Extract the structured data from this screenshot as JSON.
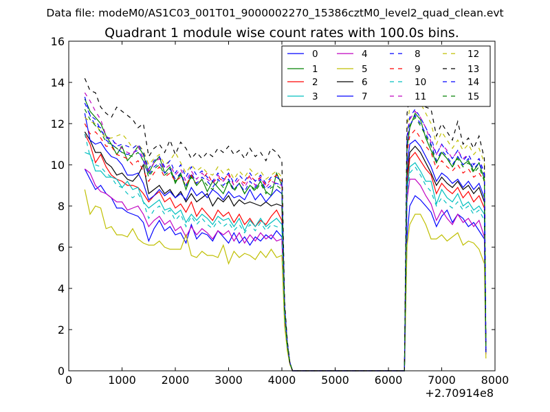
{
  "suptitle": "Data file: modeM0/AS1C03_001T01_9000002270_15386cztM0_level2_quad_clean.evt",
  "chart_data": {
    "type": "line",
    "title": "Quadrant 1 module wise count rates with 100.0s bins.",
    "xlabel": "",
    "ylabel": "",
    "xlim": [
      0,
      8000
    ],
    "ylim": [
      0,
      16
    ],
    "x_offset_label": "+2.70914e8",
    "xticks": [
      0,
      1000,
      2000,
      3000,
      4000,
      5000,
      6000,
      7000,
      8000
    ],
    "yticks": [
      0,
      2,
      4,
      6,
      8,
      10,
      12,
      14,
      16
    ],
    "grid": false,
    "legend_position": "top-right",
    "x": [
      300,
      400,
      500,
      600,
      700,
      800,
      900,
      1000,
      1100,
      1200,
      1300,
      1400,
      1500,
      1600,
      1700,
      1800,
      1900,
      2000,
      2100,
      2200,
      2300,
      2400,
      2500,
      2600,
      2700,
      2800,
      2900,
      3000,
      3100,
      3200,
      3300,
      3400,
      3500,
      3600,
      3700,
      3800,
      3900,
      4000,
      4050,
      4100,
      4150,
      4200,
      4300,
      5000,
      6000,
      6300,
      6350,
      6400,
      6500,
      6600,
      6700,
      6800,
      6900,
      7000,
      7100,
      7200,
      7300,
      7400,
      7500,
      7600,
      7700,
      7800,
      7830
    ],
    "series": [
      {
        "name": "0",
        "color": "#0000ff",
        "dash": "solid",
        "values": [
          9.8,
          9.3,
          8.8,
          9.0,
          8.6,
          8.4,
          7.9,
          7.9,
          7.7,
          7.6,
          7.5,
          7.2,
          6.3,
          6.9,
          7.3,
          6.8,
          7.0,
          6.6,
          6.7,
          6.2,
          7.1,
          6.4,
          6.7,
          6.6,
          6.3,
          6.8,
          6.5,
          6.2,
          6.7,
          6.2,
          6.5,
          6.1,
          6.5,
          6.3,
          6.6,
          6.4,
          6.8,
          6.5,
          2.5,
          1.2,
          0.4,
          0,
          0,
          0,
          0,
          0,
          6.5,
          8.0,
          8.5,
          8.3,
          8.0,
          7.7,
          7.0,
          7.5,
          7.8,
          7.2,
          7.6,
          7.4,
          7.0,
          7.2,
          6.8,
          6.4,
          0.8
        ]
      },
      {
        "name": "1",
        "color": "#008000",
        "dash": "solid",
        "values": [
          13.2,
          12.6,
          12.3,
          12.0,
          11.4,
          11.0,
          10.5,
          10.9,
          10.2,
          10.5,
          10.9,
          10.5,
          9.6,
          10.1,
          10.4,
          9.6,
          9.9,
          9.1,
          9.6,
          8.8,
          9.5,
          9.0,
          9.3,
          8.7,
          9.2,
          8.9,
          8.6,
          9.2,
          8.8,
          9.1,
          8.6,
          9.0,
          8.8,
          9.2,
          8.7,
          8.5,
          9.6,
          9.0,
          3.0,
          1.3,
          0.4,
          0,
          0,
          0,
          0,
          0,
          10.8,
          11.8,
          12.5,
          12.2,
          11.3,
          10.7,
          10.1,
          10.6,
          10.3,
          9.9,
          10.4,
          10.0,
          10.2,
          9.7,
          10.1,
          9.3,
          1.0
        ]
      },
      {
        "name": "2",
        "color": "#ff0000",
        "dash": "solid",
        "values": [
          11.5,
          11.0,
          10.1,
          10.5,
          9.9,
          9.5,
          9.3,
          9.2,
          9.0,
          9.0,
          8.9,
          8.6,
          8.2,
          8.5,
          8.7,
          8.2,
          8.4,
          7.9,
          8.1,
          7.7,
          8.2,
          7.5,
          7.9,
          7.6,
          7.3,
          7.8,
          7.5,
          7.7,
          7.2,
          7.6,
          7.1,
          7.4,
          7.0,
          7.3,
          7.1,
          7.5,
          7.8,
          7.3,
          2.8,
          1.2,
          0.4,
          0,
          0,
          0,
          0,
          0,
          9.0,
          10.3,
          10.6,
          10.2,
          9.8,
          9.5,
          8.6,
          9.1,
          8.8,
          8.6,
          8.9,
          8.4,
          8.7,
          8.2,
          8.5,
          7.9,
          0.9
        ]
      },
      {
        "name": "3",
        "color": "#00bfbf",
        "dash": "solid",
        "values": [
          10.6,
          10.5,
          9.7,
          9.7,
          9.4,
          9.4,
          9.3,
          8.9,
          9.2,
          8.8,
          8.9,
          8.2,
          7.9,
          8.1,
          8.3,
          7.8,
          7.9,
          7.6,
          7.8,
          7.2,
          7.6,
          7.3,
          7.6,
          7.4,
          7.1,
          7.5,
          7.3,
          7.4,
          7.0,
          7.4,
          6.8,
          7.3,
          7.0,
          7.4,
          7.0,
          7.2,
          7.4,
          7.1,
          2.7,
          1.2,
          0.4,
          0,
          0,
          0,
          0,
          0,
          8.8,
          9.9,
          10.1,
          9.7,
          9.2,
          9.2,
          8.1,
          8.8,
          8.4,
          8.2,
          8.6,
          8.0,
          8.2,
          7.8,
          8.0,
          7.6,
          0.9
        ]
      },
      {
        "name": "4",
        "color": "#bf00bf",
        "dash": "solid",
        "values": [
          9.8,
          9.6,
          9.0,
          8.7,
          8.6,
          8.4,
          8.2,
          8.2,
          7.8,
          7.9,
          8.0,
          7.6,
          7.0,
          7.3,
          7.5,
          7.1,
          7.3,
          6.8,
          7.0,
          6.5,
          7.0,
          6.6,
          6.9,
          6.7,
          6.4,
          6.8,
          6.6,
          6.8,
          6.3,
          6.7,
          6.2,
          6.6,
          6.3,
          6.7,
          6.4,
          6.6,
          6.3,
          6.4,
          2.4,
          1.1,
          0.4,
          0,
          0,
          0,
          0,
          0,
          8.3,
          9.3,
          9.3,
          9.0,
          8.5,
          8.1,
          7.3,
          7.8,
          7.4,
          7.1,
          7.6,
          7.2,
          7.4,
          7.0,
          7.3,
          6.5,
          0.8
        ]
      },
      {
        "name": "5",
        "color": "#bfbf00",
        "dash": "solid",
        "values": [
          8.8,
          7.6,
          8.0,
          7.9,
          6.9,
          7.0,
          6.6,
          6.6,
          6.5,
          6.9,
          6.4,
          6.2,
          6.1,
          6.1,
          6.3,
          6.0,
          5.9,
          5.9,
          5.9,
          6.6,
          5.6,
          5.5,
          5.8,
          5.6,
          5.6,
          5.5,
          6.1,
          5.2,
          5.8,
          5.5,
          5.7,
          5.6,
          5.4,
          5.8,
          5.5,
          5.9,
          5.5,
          5.6,
          2.2,
          1.0,
          0.3,
          0,
          0,
          0,
          0,
          0,
          6.1,
          7.1,
          7.6,
          7.6,
          7.1,
          6.4,
          6.4,
          6.6,
          6.3,
          6.5,
          6.7,
          6.1,
          6.3,
          6.2,
          5.9,
          5.2,
          0.6
        ]
      },
      {
        "name": "6",
        "color": "#000000",
        "dash": "solid",
        "values": [
          11.6,
          11.2,
          10.6,
          10.6,
          10.1,
          9.9,
          9.5,
          9.6,
          9.3,
          9.2,
          9.5,
          10.0,
          8.6,
          8.8,
          9.0,
          8.6,
          8.8,
          8.4,
          8.7,
          8.2,
          8.6,
          8.2,
          8.4,
          8.6,
          8.0,
          8.4,
          8.2,
          8.5,
          8.0,
          8.3,
          8.1,
          8.2,
          8.1,
          8.0,
          8.2,
          8.0,
          8.1,
          8.0,
          3.0,
          1.3,
          0.4,
          0,
          0,
          0,
          0,
          0,
          9.5,
          10.6,
          10.9,
          10.6,
          10.1,
          9.6,
          9.0,
          9.4,
          9.1,
          8.9,
          9.2,
          8.8,
          9.0,
          8.6,
          8.9,
          8.2,
          0.9
        ]
      },
      {
        "name": "7",
        "color": "#0000ff",
        "dash": "solid",
        "values": [
          12.5,
          11.2,
          11.0,
          11.1,
          10.7,
          10.4,
          10.3,
          10.0,
          9.5,
          9.5,
          9.6,
          9.1,
          8.3,
          8.5,
          8.8,
          8.5,
          8.7,
          8.4,
          8.6,
          8.3,
          8.9,
          8.5,
          8.7,
          8.4,
          8.8,
          8.6,
          8.3,
          8.7,
          8.4,
          8.5,
          8.3,
          8.8,
          8.3,
          8.6,
          8.2,
          8.5,
          8.8,
          8.6,
          3.0,
          1.3,
          0.4,
          0,
          0,
          0,
          0,
          0,
          10.0,
          11.0,
          11.2,
          10.9,
          10.4,
          9.9,
          9.2,
          9.6,
          9.4,
          9.1,
          9.3,
          8.9,
          9.2,
          8.8,
          9.1,
          8.4,
          0.9
        ]
      },
      {
        "name": "8",
        "color": "#0000ff",
        "dash": "dashed",
        "values": [
          13.3,
          12.4,
          11.9,
          11.8,
          11.2,
          11.0,
          10.8,
          10.6,
          10.5,
          10.6,
          10.7,
          10.2,
          9.5,
          9.9,
          10.1,
          9.6,
          9.8,
          9.3,
          9.6,
          9.0,
          9.6,
          9.1,
          9.4,
          9.2,
          8.9,
          9.3,
          9.0,
          9.3,
          8.8,
          9.1,
          8.7,
          9.2,
          8.9,
          9.3,
          8.8,
          9.0,
          9.1,
          9.0,
          3.1,
          1.4,
          0.4,
          0,
          0,
          0,
          0,
          0,
          10.9,
          11.9,
          12.4,
          12.0,
          11.5,
          11.0,
          10.2,
          10.7,
          10.4,
          10.0,
          10.4,
          10.0,
          10.3,
          9.8,
          10.1,
          9.5,
          1.0
        ]
      },
      {
        "name": "9",
        "color": "#ff0000",
        "dash": "dashed",
        "values": [
          12.0,
          11.5,
          11.6,
          11.3,
          10.9,
          10.9,
          10.5,
          10.4,
          10.3,
          10.0,
          10.2,
          9.7,
          9.2,
          9.6,
          9.9,
          9.4,
          9.6,
          9.2,
          9.4,
          9.0,
          9.5,
          9.0,
          9.3,
          9.6,
          9.1,
          9.4,
          9.2,
          9.6,
          9.0,
          9.3,
          9.1,
          9.5,
          9.2,
          9.4,
          9.0,
          9.3,
          9.5,
          9.2,
          3.1,
          1.4,
          0.4,
          0,
          0,
          0,
          0,
          0,
          10.6,
          11.4,
          11.7,
          11.3,
          10.9,
          10.6,
          9.8,
          10.2,
          9.9,
          9.7,
          10.0,
          9.6,
          9.8,
          9.4,
          9.6,
          9.2,
          1.0
        ]
      },
      {
        "name": "10",
        "color": "#00bfbf",
        "dash": "dashed",
        "values": [
          11.5,
          10.4,
          10.0,
          9.9,
          9.6,
          9.4,
          9.0,
          8.9,
          8.6,
          8.4,
          8.6,
          8.2,
          7.4,
          7.8,
          8.0,
          7.6,
          7.8,
          7.3,
          7.6,
          7.0,
          7.5,
          7.1,
          7.4,
          7.1,
          6.9,
          7.3,
          7.0,
          7.2,
          6.8,
          7.1,
          6.7,
          7.1,
          6.8,
          7.2,
          6.8,
          7.1,
          7.0,
          6.9,
          2.6,
          1.2,
          0.4,
          0,
          0,
          0,
          0,
          0,
          8.6,
          9.6,
          9.9,
          9.5,
          9.0,
          8.7,
          8.0,
          8.4,
          8.1,
          7.9,
          8.2,
          7.8,
          8.0,
          7.6,
          7.8,
          7.3,
          0.9
        ]
      },
      {
        "name": "11",
        "color": "#bf00bf",
        "dash": "dashed",
        "values": [
          13.5,
          13.1,
          12.6,
          12.2,
          11.4,
          11.2,
          11.0,
          10.8,
          10.6,
          10.5,
          10.9,
          10.3,
          9.7,
          10.1,
          10.3,
          9.8,
          10.0,
          9.5,
          9.8,
          9.2,
          9.7,
          9.3,
          9.6,
          9.3,
          9.1,
          9.5,
          9.2,
          9.5,
          9.0,
          9.3,
          8.9,
          9.4,
          9.0,
          9.4,
          8.9,
          9.2,
          9.1,
          9.0,
          3.1,
          1.4,
          0.4,
          0,
          0,
          0,
          0,
          0,
          11.2,
          12.2,
          12.6,
          12.3,
          11.8,
          11.1,
          10.5,
          11.0,
          10.7,
          10.3,
          10.7,
          10.3,
          10.5,
          10.0,
          10.3,
          9.6,
          1.0
        ]
      },
      {
        "name": "12",
        "color": "#bfbf00",
        "dash": "dashed",
        "values": [
          12.3,
          12.1,
          12.0,
          11.6,
          11.3,
          11.3,
          11.4,
          11.5,
          11.2,
          10.8,
          11.0,
          10.7,
          10.0,
          10.3,
          10.5,
          10.0,
          10.2,
          10.6,
          10.1,
          9.6,
          10.0,
          9.7,
          9.9,
          9.6,
          9.5,
          9.9,
          9.6,
          9.8,
          9.3,
          9.7,
          9.4,
          9.8,
          9.5,
          9.7,
          9.3,
          9.5,
          9.7,
          9.4,
          3.1,
          1.4,
          0.4,
          0,
          0,
          0,
          0,
          0,
          11.8,
          12.8,
          13.4,
          13.0,
          12.5,
          12.0,
          11.0,
          11.6,
          11.2,
          10.8,
          11.2,
          10.7,
          11.0,
          10.5,
          10.8,
          10.1,
          1.0
        ]
      },
      {
        "name": "13",
        "color": "#000000",
        "dash": "dashed",
        "values": [
          14.2,
          13.6,
          13.5,
          12.8,
          12.5,
          12.3,
          12.8,
          12.6,
          12.4,
          12.2,
          11.8,
          12.0,
          10.4,
          10.8,
          11.0,
          10.6,
          11.2,
          10.5,
          11.1,
          10.8,
          10.3,
          10.6,
          10.3,
          10.6,
          10.4,
          10.8,
          10.6,
          10.9,
          10.5,
          10.7,
          10.3,
          10.8,
          10.4,
          10.6,
          10.2,
          10.8,
          10.6,
          10.2,
          3.4,
          1.5,
          0.4,
          0,
          0,
          0,
          0,
          0,
          12.5,
          13.4,
          13.7,
          13.2,
          12.8,
          12.7,
          11.4,
          12.0,
          11.6,
          11.2,
          12.1,
          11.0,
          11.3,
          10.8,
          11.4,
          10.3,
          1.0
        ]
      },
      {
        "name": "14",
        "color": "#0000ff",
        "dash": "dashed",
        "values": [
          13.0,
          12.4,
          12.2,
          11.7,
          11.3,
          11.3,
          10.9,
          11.0,
          10.9,
          10.8,
          11.0,
          10.6,
          9.8,
          10.2,
          10.4,
          9.9,
          10.2,
          9.6,
          10.0,
          9.4,
          9.9,
          9.5,
          9.7,
          9.4,
          9.2,
          9.6,
          9.3,
          9.6,
          9.1,
          9.5,
          9.2,
          9.6,
          9.2,
          9.5,
          9.1,
          9.4,
          9.4,
          9.2,
          3.2,
          1.4,
          0.4,
          0,
          0,
          0,
          0,
          0,
          11.4,
          12.3,
          12.7,
          12.3,
          11.8,
          11.3,
          10.5,
          11.0,
          10.6,
          10.3,
          10.7,
          10.2,
          10.5,
          10.0,
          10.3,
          9.6,
          1.0
        ]
      },
      {
        "name": "15",
        "color": "#008000",
        "dash": "dashed",
        "values": [
          12.7,
          12.2,
          11.9,
          11.6,
          11.1,
          11.0,
          10.8,
          10.6,
          10.5,
          10.4,
          10.6,
          10.2,
          9.4,
          9.8,
          10.0,
          9.5,
          9.7,
          9.2,
          9.5,
          8.9,
          9.4,
          9.0,
          9.3,
          9.0,
          8.8,
          9.2,
          8.9,
          9.2,
          8.7,
          9.1,
          8.6,
          9.0,
          8.7,
          9.1,
          8.6,
          8.9,
          9.0,
          8.8,
          3.0,
          1.3,
          0.4,
          0,
          0,
          0,
          0,
          0,
          10.9,
          11.9,
          12.3,
          11.9,
          11.4,
          10.9,
          10.1,
          10.6,
          10.3,
          9.9,
          10.3,
          9.9,
          10.1,
          9.6,
          9.9,
          9.2,
          1.0
        ]
      }
    ]
  }
}
